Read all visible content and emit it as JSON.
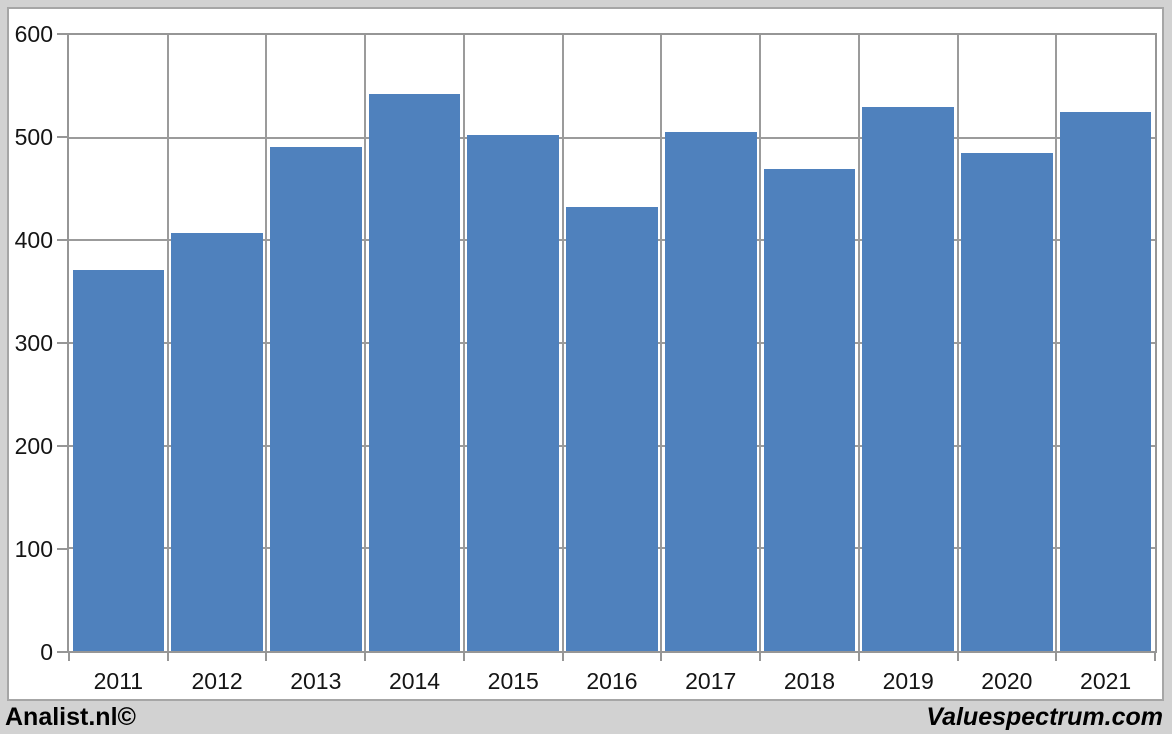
{
  "footer": {
    "left_brand": "Analist.nl©",
    "right_brand": "Valuespectrum.com"
  },
  "chart_data": {
    "type": "bar",
    "title": "",
    "xlabel": "",
    "ylabel": "",
    "categories": [
      "2011",
      "2012",
      "2013",
      "2014",
      "2015",
      "2016",
      "2017",
      "2018",
      "2019",
      "2020",
      "2021"
    ],
    "values": [
      371,
      407,
      491,
      543,
      503,
      432,
      506,
      469,
      530,
      485,
      525
    ],
    "ylim": [
      0,
      600
    ],
    "yticks": [
      0,
      100,
      200,
      300,
      400,
      500,
      600
    ],
    "grid": true,
    "vertical_category_gridlines": true,
    "legend": false,
    "colors": {
      "bar_fill": "#4f81bd",
      "gridline": "#9b9b9b",
      "plot_border": "#969696",
      "tick": "#969696",
      "text": "#151515",
      "chart_background": "#ffffff",
      "frame_background": "#d2d2d2"
    }
  }
}
